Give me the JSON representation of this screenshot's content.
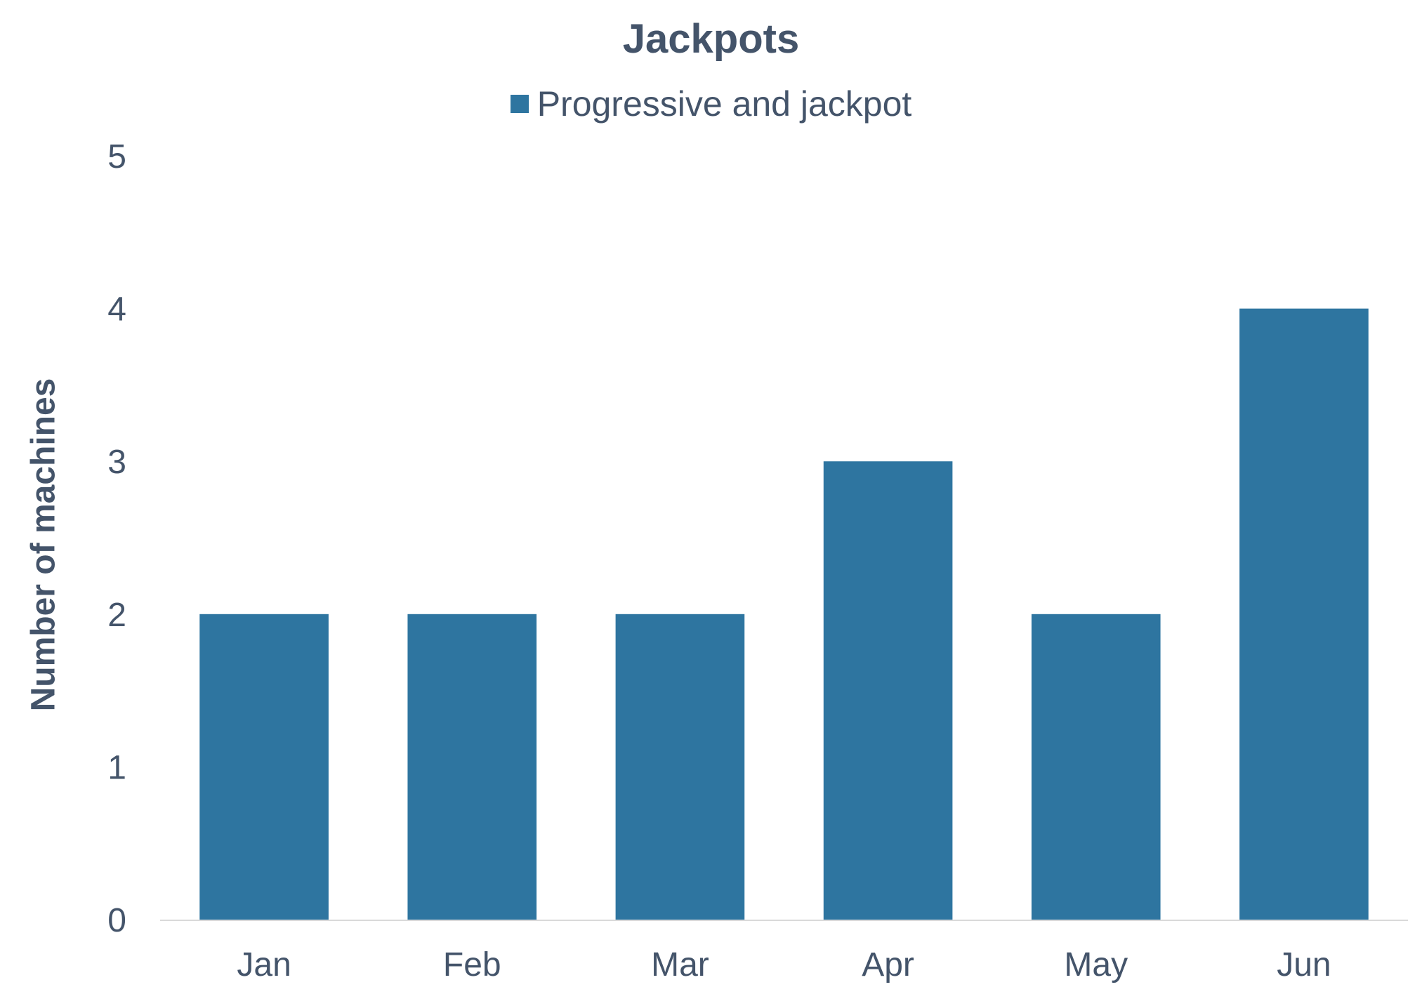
{
  "chart_data": {
    "type": "bar",
    "title": "Jackpots",
    "ylabel": "Number of machines",
    "xlabel": "",
    "categories": [
      "Jan",
      "Feb",
      "Mar",
      "Apr",
      "May",
      "Jun"
    ],
    "series": [
      {
        "name": "Progressive and jackpot",
        "values": [
          2,
          2,
          2,
          3,
          2,
          4
        ],
        "color": "#2e75a0"
      }
    ],
    "ylim": [
      0,
      5
    ],
    "yticks": [
      "0",
      "1",
      "2",
      "3",
      "4",
      "5"
    ],
    "grid": false,
    "legend_position": "top-center",
    "axis_color": "#d9d9d9",
    "text_color": "#44546a"
  }
}
